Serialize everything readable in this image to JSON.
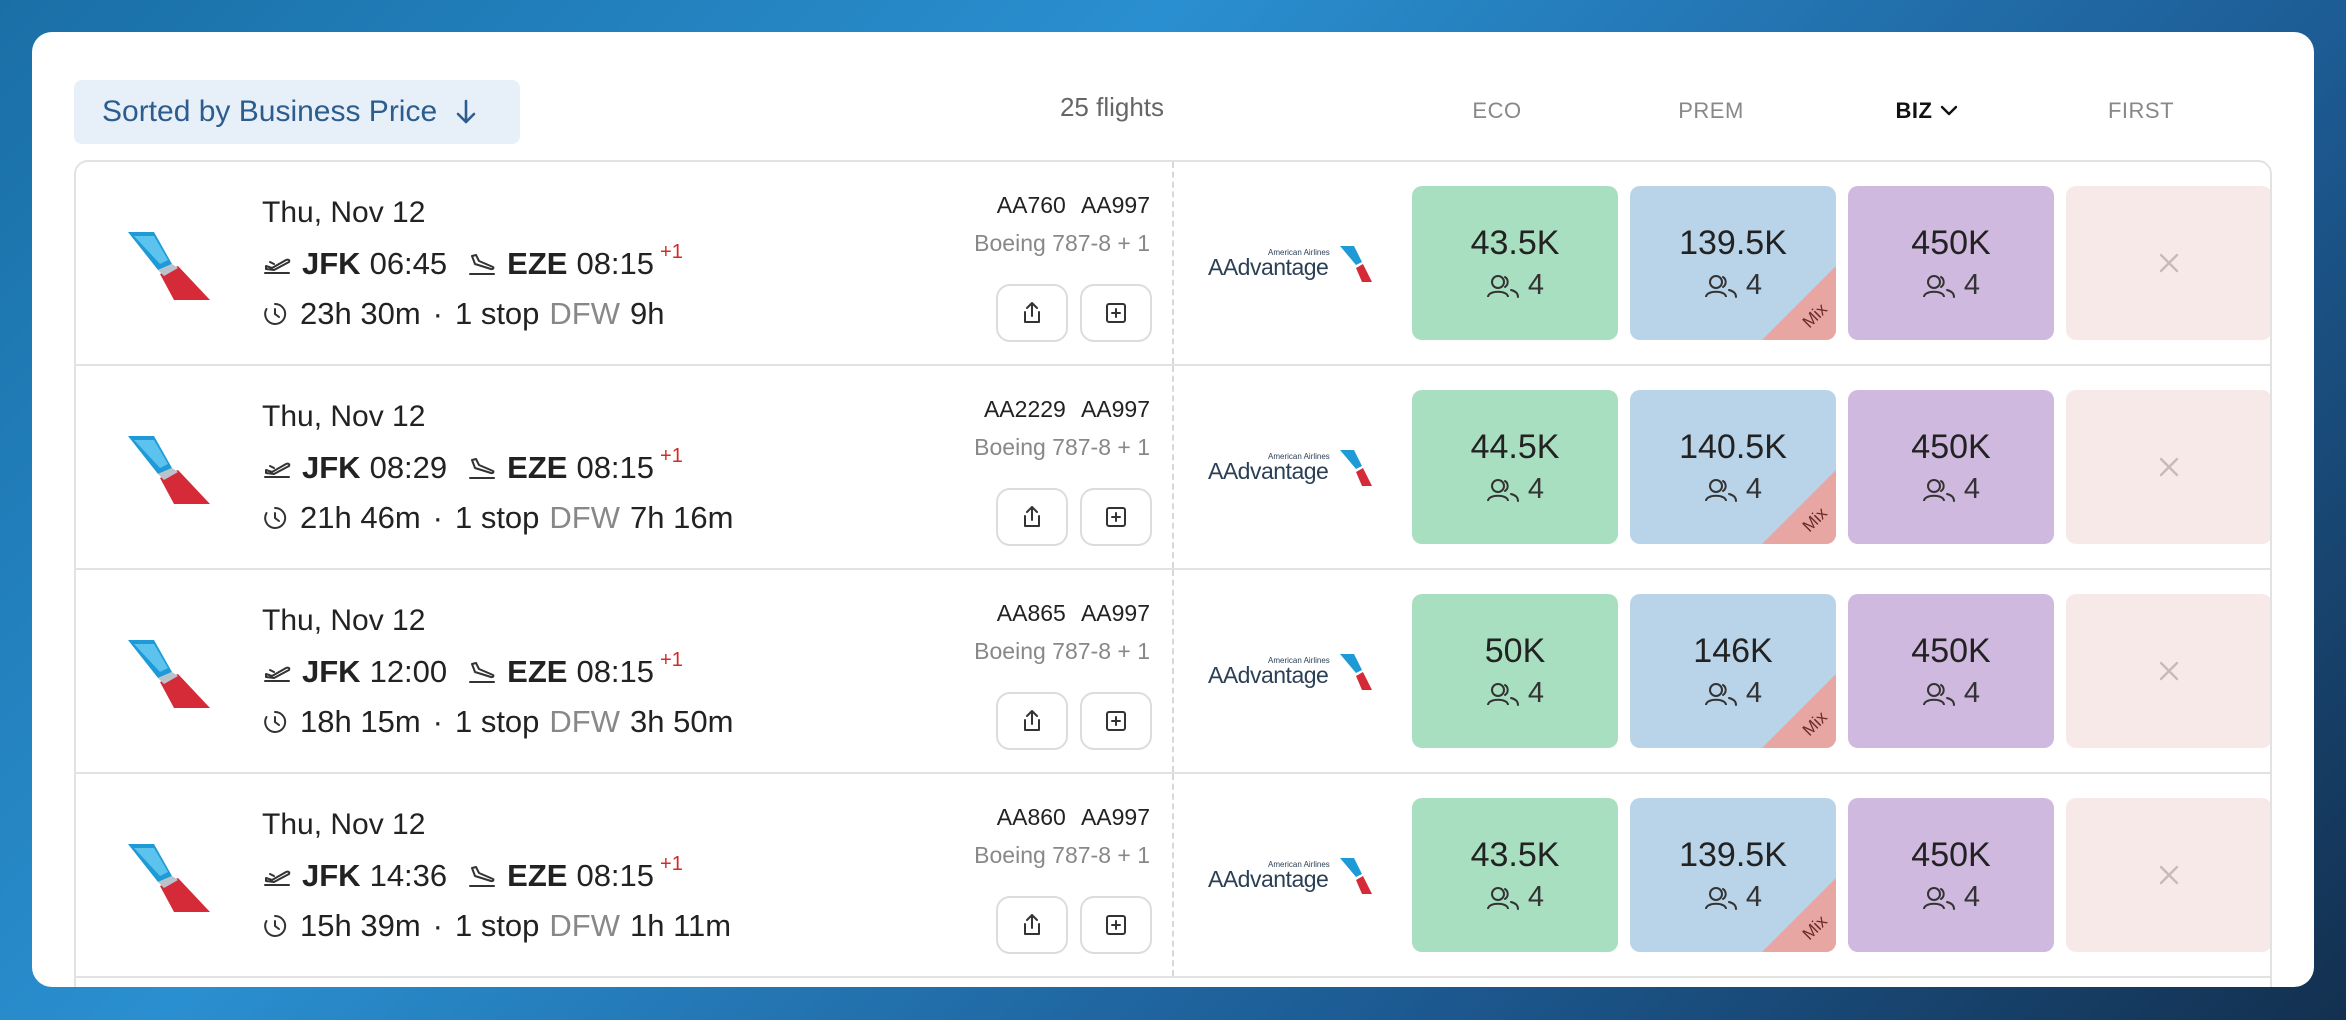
{
  "header": {
    "sort_label": "Sorted by Business Price",
    "flight_count": "25 flights",
    "columns": [
      {
        "label": "ECO",
        "active": false
      },
      {
        "label": "PREM",
        "active": false
      },
      {
        "label": "BIZ",
        "active": true
      },
      {
        "label": "FIRST",
        "active": false
      }
    ]
  },
  "colors": {
    "eco": "#a8dfc0",
    "prem": "#b9d3e8",
    "biz": "#cfb9df",
    "first": "#f8e9e9",
    "mix": "#e8a6a2",
    "overnight": "#d62a2a"
  },
  "rows": [
    {
      "date": "Thu, Nov 12",
      "dep_code": "JFK",
      "dep_time": "06:45",
      "arr_code": "EZE",
      "arr_time": "08:15",
      "day_offset": "+1",
      "duration": "23h 30m",
      "stops": "1 stop",
      "via": "DFW",
      "layover": "9h",
      "flight_numbers": "AA760 AA997",
      "aircraft": "Boeing 787-8 + 1",
      "eco": "43.5K",
      "eco_seats": "4",
      "prem": "139.5K",
      "prem_seats": "4",
      "prem_mix": "Mix",
      "biz": "450K",
      "biz_seats": "4"
    },
    {
      "date": "Thu, Nov 12",
      "dep_code": "JFK",
      "dep_time": "08:29",
      "arr_code": "EZE",
      "arr_time": "08:15",
      "day_offset": "+1",
      "duration": "21h 46m",
      "stops": "1 stop",
      "via": "DFW",
      "layover": "7h 16m",
      "flight_numbers": "AA2229 AA997",
      "aircraft": "Boeing 787-8 + 1",
      "eco": "44.5K",
      "eco_seats": "4",
      "prem": "140.5K",
      "prem_seats": "4",
      "prem_mix": "Mix",
      "biz": "450K",
      "biz_seats": "4"
    },
    {
      "date": "Thu, Nov 12",
      "dep_code": "JFK",
      "dep_time": "12:00",
      "arr_code": "EZE",
      "arr_time": "08:15",
      "day_offset": "+1",
      "duration": "18h 15m",
      "stops": "1 stop",
      "via": "DFW",
      "layover": "3h 50m",
      "flight_numbers": "AA865 AA997",
      "aircraft": "Boeing 787-8 + 1",
      "eco": "50K",
      "eco_seats": "4",
      "prem": "146K",
      "prem_seats": "4",
      "prem_mix": "Mix",
      "biz": "450K",
      "biz_seats": "4"
    },
    {
      "date": "Thu, Nov 12",
      "dep_code": "JFK",
      "dep_time": "14:36",
      "arr_code": "EZE",
      "arr_time": "08:15",
      "day_offset": "+1",
      "duration": "15h 39m",
      "stops": "1 stop",
      "via": "DFW",
      "layover": "1h 11m",
      "flight_numbers": "AA860 AA997",
      "aircraft": "Boeing 787-8 + 1",
      "eco": "43.5K",
      "eco_seats": "4",
      "prem": "139.5K",
      "prem_seats": "4",
      "prem_mix": "Mix",
      "biz": "450K",
      "biz_seats": "4"
    }
  ]
}
